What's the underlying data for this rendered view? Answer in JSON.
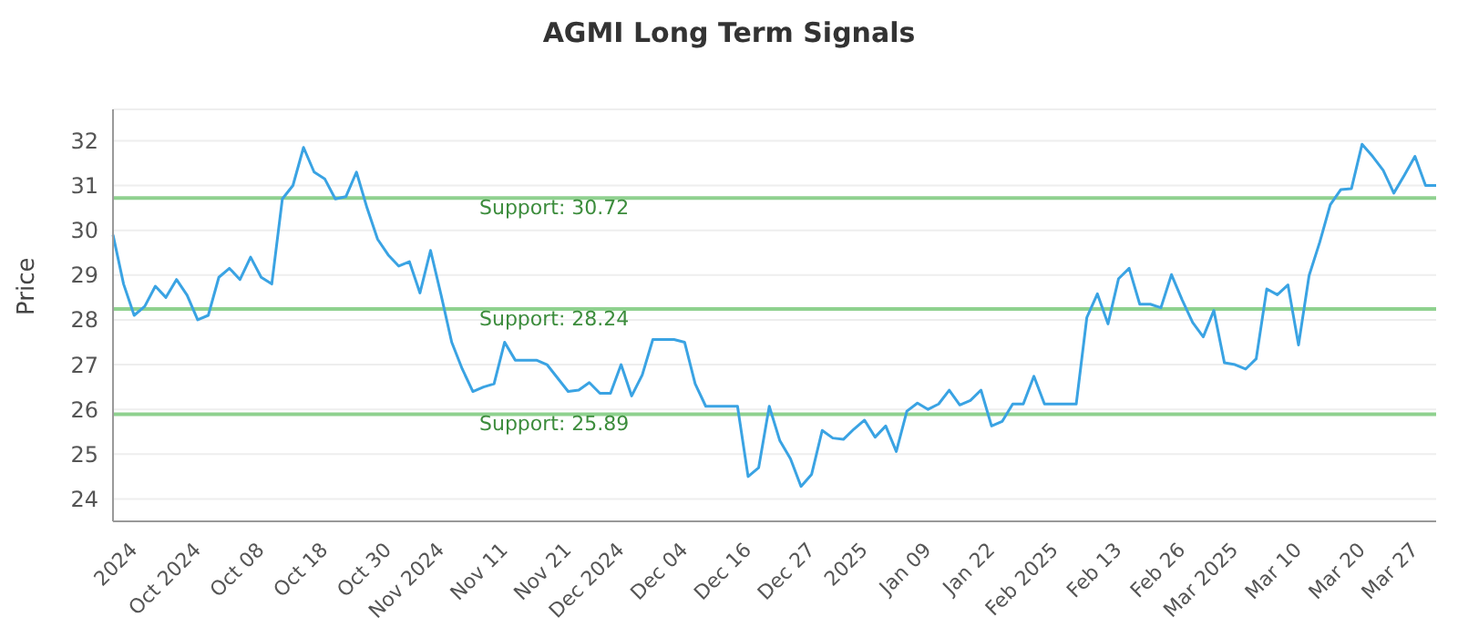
{
  "chart_data": {
    "type": "line",
    "title": "AGMI Long Term Signals",
    "ylabel": "Price",
    "categories": [
      null,
      null,
      "2024",
      null,
      null,
      null,
      null,
      null,
      "Oct 2024",
      null,
      null,
      null,
      null,
      null,
      "Oct 08",
      null,
      null,
      null,
      null,
      null,
      "Oct 18",
      null,
      null,
      null,
      null,
      null,
      "Oct 30",
      null,
      null,
      null,
      null,
      "Nov 2024",
      null,
      null,
      null,
      null,
      null,
      "Nov 11",
      null,
      null,
      null,
      null,
      null,
      "Nov 21",
      null,
      null,
      null,
      null,
      "Dec 2024",
      null,
      null,
      null,
      null,
      null,
      "Dec 04",
      null,
      null,
      null,
      null,
      null,
      "Dec 16",
      null,
      null,
      null,
      null,
      null,
      "Dec 27",
      null,
      null,
      null,
      null,
      "2025",
      null,
      null,
      null,
      null,
      null,
      "Jan 09",
      null,
      null,
      null,
      null,
      null,
      "Jan 22",
      null,
      null,
      null,
      null,
      null,
      "Feb 2025",
      null,
      null,
      null,
      null,
      null,
      "Feb 13",
      null,
      null,
      null,
      null,
      null,
      "Feb 26",
      null,
      null,
      null,
      null,
      "Mar 2025",
      null,
      null,
      null,
      null,
      null,
      "Mar 10",
      null,
      null,
      null,
      null,
      null,
      "Mar 20",
      null,
      null,
      null,
      null,
      "Mar 27",
      null,
      null
    ],
    "series": [
      {
        "color": "#3aa3e3",
        "values": [
          29.9,
          28.8,
          28.1,
          28.3,
          28.75,
          28.5,
          28.9,
          28.55,
          28.0,
          28.1,
          28.95,
          29.15,
          28.9,
          29.4,
          28.95,
          28.8,
          30.7,
          31.0,
          31.85,
          31.3,
          31.15,
          30.7,
          30.75,
          31.3,
          30.5,
          29.8,
          29.45,
          29.2,
          29.3,
          28.6,
          29.55,
          28.55,
          27.5,
          26.9,
          26.4,
          26.5,
          26.57,
          27.5,
          27.1,
          27.1,
          27.1,
          27.0,
          26.7,
          26.4,
          26.43,
          26.6,
          26.36,
          26.36,
          27.0,
          26.3,
          26.77,
          27.56,
          27.56,
          27.56,
          27.5,
          26.57,
          26.07,
          26.07,
          26.07,
          26.07,
          24.5,
          24.7,
          26.07,
          25.3,
          24.9,
          24.28,
          24.55,
          25.53,
          25.36,
          25.33,
          25.56,
          25.76,
          25.38,
          25.63,
          25.06,
          25.96,
          26.14,
          26.0,
          26.12,
          26.43,
          26.1,
          26.2,
          26.43,
          25.63,
          25.73,
          26.12,
          26.12,
          26.74,
          26.12,
          26.12,
          26.12,
          26.12,
          28.05,
          28.58,
          27.91,
          28.92,
          29.15,
          28.35,
          28.35,
          28.27,
          29.01,
          28.45,
          27.94,
          27.62,
          28.21,
          27.04,
          27.0,
          26.9,
          27.13,
          28.69,
          28.56,
          28.78,
          27.44,
          28.99,
          29.73,
          30.57,
          30.91,
          30.93,
          31.92,
          31.65,
          31.34,
          30.83,
          31.23,
          31.65,
          31.0,
          31.0
        ]
      }
    ],
    "ylim": [
      23.5,
      32.7
    ],
    "yticks": [
      24,
      25,
      26,
      27,
      28,
      29,
      30,
      31,
      32
    ],
    "grid": "y",
    "legend": false,
    "marker": "none",
    "line_style": "solid",
    "ref_lines": [
      {
        "axis": "y",
        "value": 30.72,
        "label": "Support: 30.72",
        "color": "#8fd18f"
      },
      {
        "axis": "y",
        "value": 28.24,
        "label": "Support: 28.24",
        "color": "#8fd18f"
      },
      {
        "axis": "y",
        "value": 25.89,
        "label": "Support: 25.89",
        "color": "#8fd18f"
      }
    ]
  }
}
